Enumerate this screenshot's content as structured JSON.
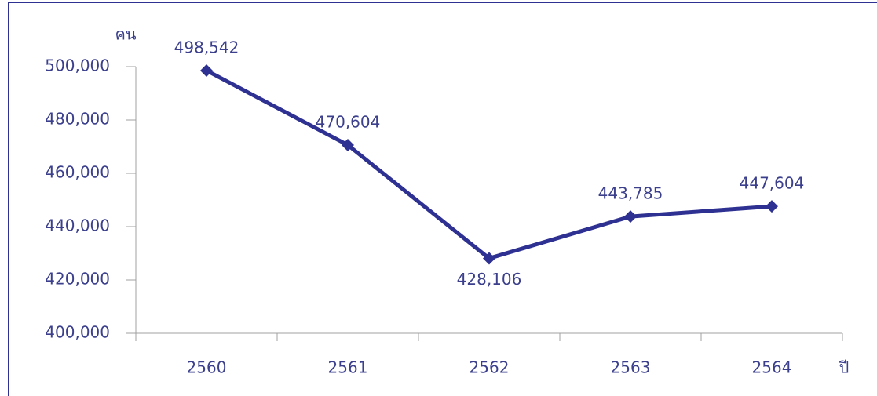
{
  "chart_data": {
    "type": "line",
    "y_label": "คน",
    "x_label": "ปี",
    "categories": [
      "2560",
      "2561",
      "2562",
      "2563",
      "2564"
    ],
    "series": [
      {
        "name": "คน",
        "color": "#2e3192",
        "values": [
          498542,
          470604,
          428106,
          443785,
          447604
        ],
        "value_labels": [
          "498,542",
          "470,604",
          "428,106",
          "443,785",
          "447,604"
        ]
      }
    ],
    "ylim": [
      400000,
      500000
    ],
    "yticks": [
      {
        "value": 400000,
        "label": "400,000"
      },
      {
        "value": 420000,
        "label": "420,000"
      },
      {
        "value": 440000,
        "label": "440,000"
      },
      {
        "value": 460000,
        "label": "460,000"
      },
      {
        "value": 480000,
        "label": "480,000"
      },
      {
        "value": 500000,
        "label": "500,000"
      }
    ],
    "grid": false
  }
}
